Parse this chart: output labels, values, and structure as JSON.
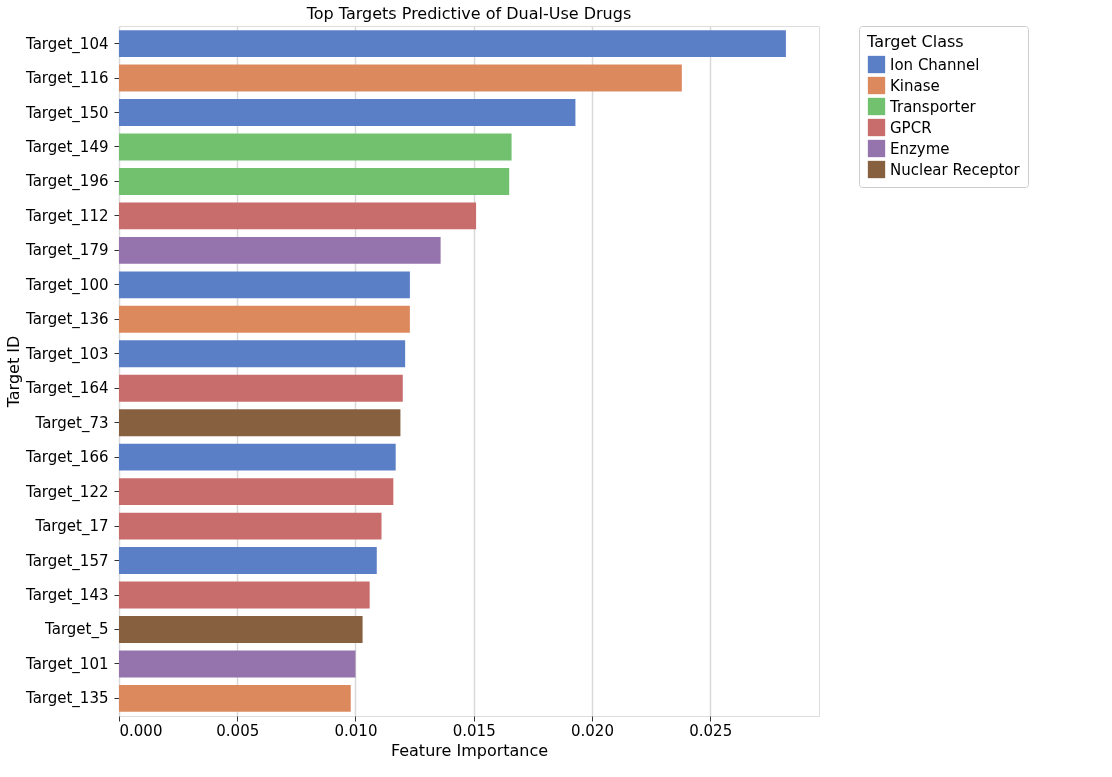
{
  "chart_data": {
    "type": "bar",
    "orientation": "horizontal",
    "title": "Top Targets Predictive of Dual-Use Drugs",
    "xlabel": "Feature Importance",
    "ylabel": "Target ID",
    "legend_title": "Target Class",
    "legend": "top right",
    "grid": "x",
    "categories": [
      "Target_104",
      "Target_116",
      "Target_150",
      "Target_149",
      "Target_196",
      "Target_112",
      "Target_179",
      "Target_100",
      "Target_136",
      "Target_103",
      "Target_164",
      "Target_73",
      "Target_166",
      "Target_122",
      "Target_17",
      "Target_157",
      "Target_143",
      "Target_5",
      "Target_101",
      "Target_135"
    ],
    "xlim": [
      0,
      0.0296
    ],
    "xticks": [
      {
        "value": 0,
        "label": "0.000"
      },
      {
        "value": 0.005,
        "label": "0.005"
      },
      {
        "value": 0.01,
        "label": "0.010"
      },
      {
        "value": 0.015,
        "label": "0.015"
      },
      {
        "value": 0.02,
        "label": "0.020"
      },
      {
        "value": 0.025,
        "label": "0.025"
      }
    ],
    "series": [
      {
        "name": "Ion Channel",
        "color": "#5a7fc6",
        "values": [
          0.0282,
          null,
          0.0193,
          null,
          null,
          null,
          null,
          0.0123,
          null,
          0.0121,
          null,
          null,
          0.0117,
          null,
          null,
          0.0109,
          null,
          null,
          null,
          null
        ]
      },
      {
        "name": "Kinase",
        "color": "#dc8a5d",
        "values": [
          null,
          0.0238,
          null,
          null,
          null,
          null,
          null,
          null,
          0.0123,
          null,
          null,
          null,
          null,
          null,
          null,
          null,
          null,
          null,
          null,
          0.0098
        ]
      },
      {
        "name": "Transporter",
        "color": "#72c16e",
        "values": [
          null,
          null,
          null,
          0.0166,
          0.0165,
          null,
          null,
          null,
          null,
          null,
          null,
          null,
          null,
          null,
          null,
          null,
          null,
          null,
          null,
          null
        ]
      },
      {
        "name": "GPCR",
        "color": "#c96c6c",
        "values": [
          null,
          null,
          null,
          null,
          null,
          0.0151,
          null,
          null,
          null,
          null,
          0.012,
          null,
          null,
          0.0116,
          0.0111,
          null,
          0.0106,
          null,
          null,
          null
        ]
      },
      {
        "name": "Enzyme",
        "color": "#9574ad",
        "values": [
          null,
          null,
          null,
          null,
          null,
          null,
          0.0136,
          null,
          null,
          null,
          null,
          null,
          null,
          null,
          null,
          null,
          null,
          null,
          0.01,
          null
        ]
      },
      {
        "name": "Nuclear Receptor",
        "color": "#86603f",
        "values": [
          null,
          null,
          null,
          null,
          null,
          null,
          null,
          null,
          null,
          null,
          null,
          0.0119,
          null,
          null,
          null,
          null,
          null,
          0.0103,
          null,
          null
        ]
      }
    ]
  }
}
